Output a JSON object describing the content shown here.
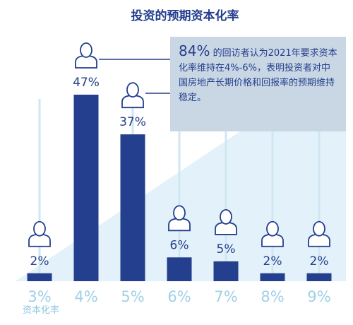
{
  "chart_data": {
    "type": "bar",
    "title": "投资的预期资本化率",
    "xlabel": "资本化率",
    "categories": [
      "3%",
      "4%",
      "5%",
      "6%",
      "7%",
      "8%",
      "9%"
    ],
    "series": [
      {
        "values": [
          2,
          47,
          37,
          6,
          5,
          2,
          2
        ],
        "value_labels": [
          "2%",
          "47%",
          "37%",
          "6%",
          "5%",
          "2%",
          "2%"
        ]
      }
    ],
    "ylim": [
      0,
      47
    ],
    "grid": false,
    "legend": "none",
    "colors": {
      "bar": "#233f8d",
      "background_wedge": "#e3f1fa",
      "gridline": "#cfe6f3",
      "category_text": "#9fd0e6",
      "callout_bg": "#c9d6e3"
    },
    "icon": "person-icon"
  },
  "callout": {
    "highlight": "84%",
    "text": "的回访者认为2021年要求资本化率维持在4%-6%，表明投资者对中国房地产长期价格和回报率的预期维持稳定。"
  }
}
